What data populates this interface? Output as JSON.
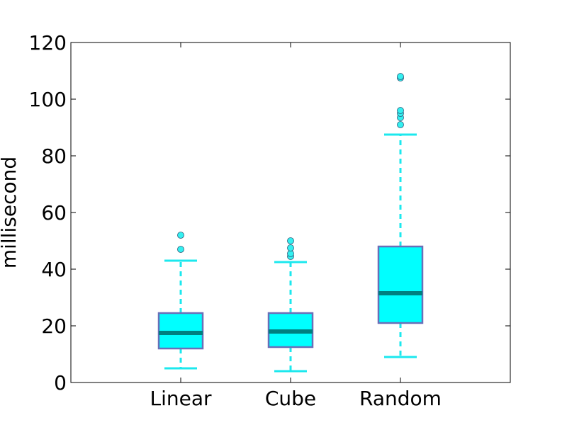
{
  "chart_data": {
    "type": "box",
    "title": "",
    "xlabel": "",
    "ylabel": "millisecond",
    "ylim": [
      0,
      120
    ],
    "yticks": [
      0,
      20,
      40,
      60,
      80,
      100,
      120
    ],
    "grid": false,
    "categories": [
      "Linear",
      "Cube",
      "Random"
    ],
    "boxes": [
      {
        "category": "Linear",
        "whisker_low": 5,
        "q1": 12,
        "median": 17.5,
        "q3": 24.5,
        "whisker_high": 43,
        "outliers": [
          47,
          52
        ]
      },
      {
        "category": "Cube",
        "whisker_low": 4,
        "q1": 12.5,
        "median": 18,
        "q3": 24.5,
        "whisker_high": 42.5,
        "outliers": [
          44.5,
          45.5,
          47.5,
          50
        ]
      },
      {
        "category": "Random",
        "whisker_low": 9,
        "q1": 21,
        "median": 31.5,
        "q3": 48,
        "whisker_high": 87.5,
        "outliers": [
          91,
          93.5,
          95,
          96,
          107.5,
          108
        ]
      }
    ],
    "colors": {
      "box_fill": "#00ffff",
      "box_edge": "#6a6fb8",
      "median": "#008080",
      "whisker": "#1ce8ee",
      "outlier_fill": "#33f0f0",
      "outlier_edge": "#2a5a7a",
      "axes": "#000000"
    }
  }
}
